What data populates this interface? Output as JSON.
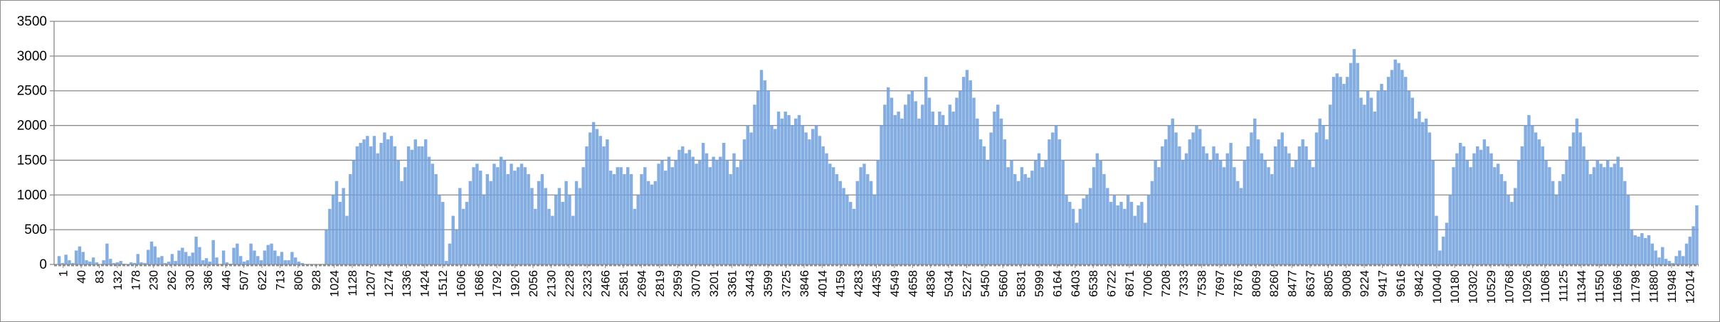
{
  "chart_data": {
    "type": "bar",
    "title": "",
    "xlabel": "",
    "ylabel": "",
    "ylim": [
      0,
      3500
    ],
    "y_ticks": [
      0,
      500,
      1000,
      1500,
      2000,
      2500,
      3000,
      3500
    ],
    "grid": true,
    "legend": "none",
    "bar_color": "#6f9fdc",
    "x_tick_labels": [
      "1",
      "40",
      "83",
      "132",
      "178",
      "230",
      "262",
      "330",
      "386",
      "446",
      "507",
      "622",
      "713",
      "806",
      "928",
      "1024",
      "1128",
      "1207",
      "1274",
      "1336",
      "1424",
      "1512",
      "1606",
      "1686",
      "1792",
      "1920",
      "2056",
      "2130",
      "2228",
      "2323",
      "2466",
      "2581",
      "2694",
      "2819",
      "2959",
      "3070",
      "3201",
      "3361",
      "3443",
      "3599",
      "3725",
      "3846",
      "4014",
      "4159",
      "4283",
      "4435",
      "4549",
      "4658",
      "4836",
      "5034",
      "5227",
      "5450",
      "5660",
      "5831",
      "5999",
      "6164",
      "6403",
      "6538",
      "6722",
      "6871",
      "7006",
      "7208",
      "7333",
      "7538",
      "7697",
      "7876",
      "8069",
      "8260",
      "8477",
      "8637",
      "8805",
      "9008",
      "9224",
      "9417",
      "9616",
      "9842",
      "10040",
      "10180",
      "10302",
      "10529",
      "10768",
      "10926",
      "11068",
      "11125",
      "11344",
      "11550",
      "11696",
      "11798",
      "11880",
      "11948",
      "12014"
    ],
    "series": [
      {
        "values": [
          0,
          120,
          20,
          140,
          60,
          20,
          200,
          260,
          180,
          60,
          40,
          100,
          30,
          0,
          60,
          300,
          80,
          20,
          30,
          50,
          10,
          0,
          30,
          20,
          150,
          30,
          20,
          210,
          330,
          260,
          100,
          120,
          20,
          40,
          150,
          50,
          200,
          240,
          180,
          120,
          170,
          400,
          250,
          60,
          90,
          40,
          350,
          100,
          0,
          200,
          30,
          10,
          240,
          300,
          120,
          40,
          60,
          300,
          200,
          120,
          60,
          200,
          280,
          300,
          200,
          120,
          180,
          60,
          60,
          180,
          100,
          40,
          20,
          0,
          0,
          0,
          0,
          0,
          0,
          500,
          800,
          1000,
          1200,
          900,
          1100,
          700,
          1300,
          1500,
          1700,
          1750,
          1800,
          1850,
          1700,
          1850,
          1600,
          1750,
          1900,
          1800,
          1850,
          1700,
          1500,
          1200,
          1400,
          1700,
          1650,
          1800,
          1700,
          1700,
          1800,
          1550,
          1450,
          1300,
          1000,
          900,
          50,
          300,
          700,
          500,
          1100,
          800,
          900,
          1200,
          1400,
          1450,
          1350,
          1000,
          1300,
          1200,
          1450,
          1400,
          1550,
          1500,
          1300,
          1450,
          1350,
          1400,
          1450,
          1400,
          1300,
          1100,
          800,
          1200,
          1300,
          1100,
          800,
          700,
          1000,
          1100,
          900,
          1200,
          1000,
          700,
          1200,
          1100,
          1400,
          1700,
          1900,
          2050,
          1950,
          1850,
          1700,
          1800,
          1350,
          1300,
          1400,
          1400,
          1300,
          1400,
          1300,
          800,
          1000,
          1300,
          1400,
          1200,
          1150,
          1200,
          1450,
          1500,
          1350,
          1550,
          1400,
          1500,
          1650,
          1700,
          1600,
          1650,
          1550,
          1450,
          1500,
          1750,
          1600,
          1400,
          1550,
          1500,
          1550,
          1750,
          1500,
          1300,
          1600,
          1400,
          1500,
          1800,
          2000,
          1900,
          2300,
          2500,
          2800,
          2650,
          2500,
          2000,
          1950,
          2200,
          2100,
          2200,
          2150,
          2000,
          2100,
          2150,
          2000,
          1900,
          1800,
          1950,
          2000,
          1850,
          1700,
          1600,
          1450,
          1400,
          1300,
          1200,
          1100,
          1000,
          900,
          800,
          1200,
          1400,
          1450,
          1300,
          1200,
          1000,
          1500,
          2000,
          2300,
          2550,
          2400,
          2150,
          2200,
          2100,
          2300,
          2450,
          2500,
          2350,
          2100,
          2300,
          2700,
          2400,
          2200,
          2000,
          2200,
          2150,
          2000,
          2300,
          2200,
          2400,
          2500,
          2700,
          2800,
          2650,
          2400,
          2100,
          1800,
          1700,
          1500,
          1900,
          2200,
          2300,
          2100,
          1800,
          1400,
          1500,
          1300,
          1200,
          1400,
          1300,
          1250,
          1350,
          1500,
          1600,
          1400,
          1500,
          1800,
          1900,
          2000,
          1800,
          1500,
          1000,
          900,
          800,
          600,
          800,
          950,
          1000,
          1100,
          1400,
          1600,
          1500,
          1300,
          1100,
          900,
          1000,
          850,
          900,
          800,
          1000,
          900,
          700,
          850,
          900,
          600,
          1000,
          1200,
          1500,
          1400,
          1700,
          1800,
          2000,
          2100,
          1900,
          1700,
          1500,
          1600,
          1800,
          1900,
          2000,
          1950,
          1700,
          1600,
          1500,
          1700,
          1600,
          1500,
          1400,
          1600,
          1750,
          1400,
          1200,
          1100,
          1500,
          1700,
          1900,
          2100,
          1800,
          1600,
          1500,
          1400,
          1300,
          1700,
          1800,
          1900,
          1700,
          1600,
          1400,
          1500,
          1700,
          1800,
          1700,
          1500,
          1400,
          1900,
          2100,
          2000,
          1800,
          2300,
          2700,
          2750,
          2700,
          2600,
          2700,
          2900,
          3100,
          2900,
          2400,
          2300,
          2500,
          2400,
          2200,
          2500,
          2600,
          2500,
          2700,
          2800,
          2950,
          2900,
          2800,
          2700,
          2500,
          2400,
          2100,
          2200,
          2050,
          2100,
          1900,
          1500,
          700,
          200,
          400,
          600,
          1000,
          1400,
          1600,
          1750,
          1700,
          1500,
          1400,
          1600,
          1700,
          1650,
          1800,
          1700,
          1600,
          1400,
          1450,
          1300,
          1200,
          1000,
          900,
          1100,
          1500,
          1700,
          2000,
          2150,
          2000,
          1900,
          1800,
          1700,
          1500,
          1400,
          1200,
          1000,
          1200,
          1300,
          1500,
          1700,
          1900,
          2100,
          1900,
          1700,
          1500,
          1300,
          1400,
          1500,
          1450,
          1400,
          1500,
          1400,
          1450,
          1550,
          1400,
          1200,
          1000,
          500,
          420,
          400,
          450,
          380,
          420,
          300,
          200,
          100,
          250,
          80,
          50,
          20,
          120,
          200,
          120,
          300,
          400,
          550,
          850
        ]
      }
    ]
  }
}
